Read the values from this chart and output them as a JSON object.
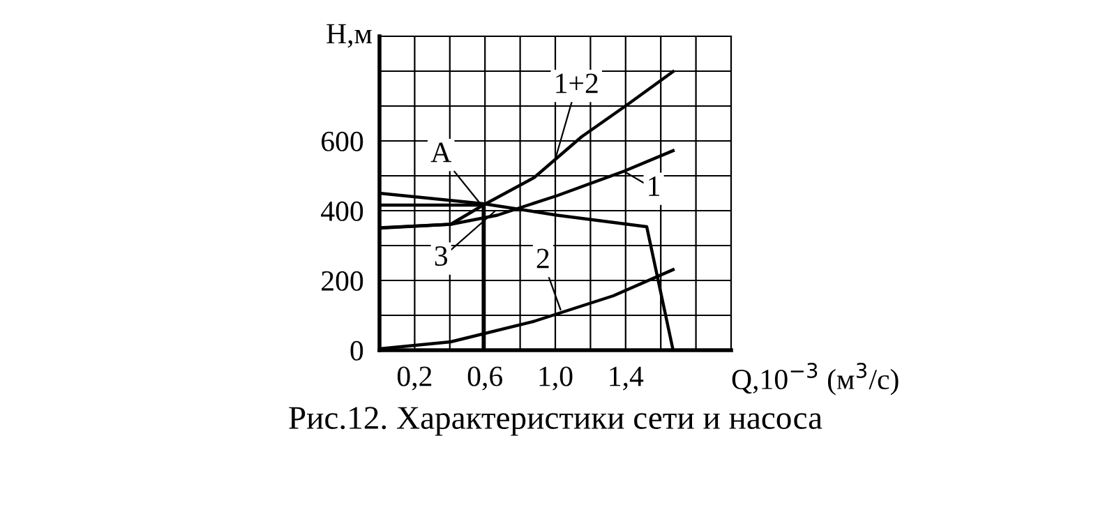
{
  "chart_data": {
    "type": "line",
    "title": "Рис.12. Характеристики сети и насоса",
    "xlabel": "Q,10$^{−3}$ (м$^{3}$/с)",
    "ylabel": "Н,м",
    "series": [
      {
        "color": "#000000",
        "x": [
          0,
          0.405,
          0.59,
          0.88,
          1.15,
          1.41,
          1.67
        ],
        "values": [
          351,
          361,
          416,
          495,
          612,
          704,
          799
        ]
      },
      {
        "color": "#000000",
        "x": [
          0,
          0.405,
          0.67,
          1.01,
          1.39,
          1.67
        ],
        "values": [
          350,
          361,
          387,
          443,
          513,
          572
        ]
      },
      {
        "color": "#000000",
        "x": [
          0,
          0.59,
          1.01,
          1.52,
          1.67
        ],
        "values": [
          450,
          420,
          387,
          354,
          0
        ]
      },
      {
        "color": "#000000",
        "x": [
          0,
          0.405,
          0.88,
          1.33,
          1.67
        ],
        "values": [
          4,
          24,
          83,
          156,
          231
        ]
      },
      {
        "color": "#000000",
        "x": [
          0,
          0.59,
          0.59
        ],
        "values": [
          416,
          416,
          0
        ]
      }
    ],
    "annotations": [
      {
        "text": "1+2",
        "x": 1.0,
        "y": 548
      },
      {
        "text": "А",
        "x": 0.58,
        "y": 416
      },
      {
        "text": "1",
        "x": 1.39,
        "y": 513
      },
      {
        "text": "3",
        "x": 0.66,
        "y": 400
      },
      {
        "text": "2",
        "x": 1.03,
        "y": 116
      }
    ],
    "xlim": [
      0,
      2.0
    ],
    "ylim": [
      0,
      900
    ],
    "xticks": [
      {
        "value": 0.2,
        "label": "0,2"
      },
      {
        "value": 0.4,
        "label": null
      },
      {
        "value": 0.6,
        "label": "0,6"
      },
      {
        "value": 0.8,
        "label": null
      },
      {
        "value": 1.0,
        "label": "1,0"
      },
      {
        "value": 1.2,
        "label": null
      },
      {
        "value": 1.4,
        "label": "1,4"
      },
      {
        "value": 1.6,
        "label": null
      },
      {
        "value": 1.8,
        "label": null
      }
    ],
    "yticks": [
      0,
      {
        "value": 100,
        "label": null
      },
      200,
      {
        "value": 300,
        "label": null
      },
      400,
      {
        "value": 500,
        "label": null
      },
      600,
      {
        "value": 700,
        "label": null
      },
      {
        "value": 800,
        "label": null
      }
    ],
    "grid": true,
    "legend": false,
    "marker": "none",
    "line_style": "solid"
  }
}
